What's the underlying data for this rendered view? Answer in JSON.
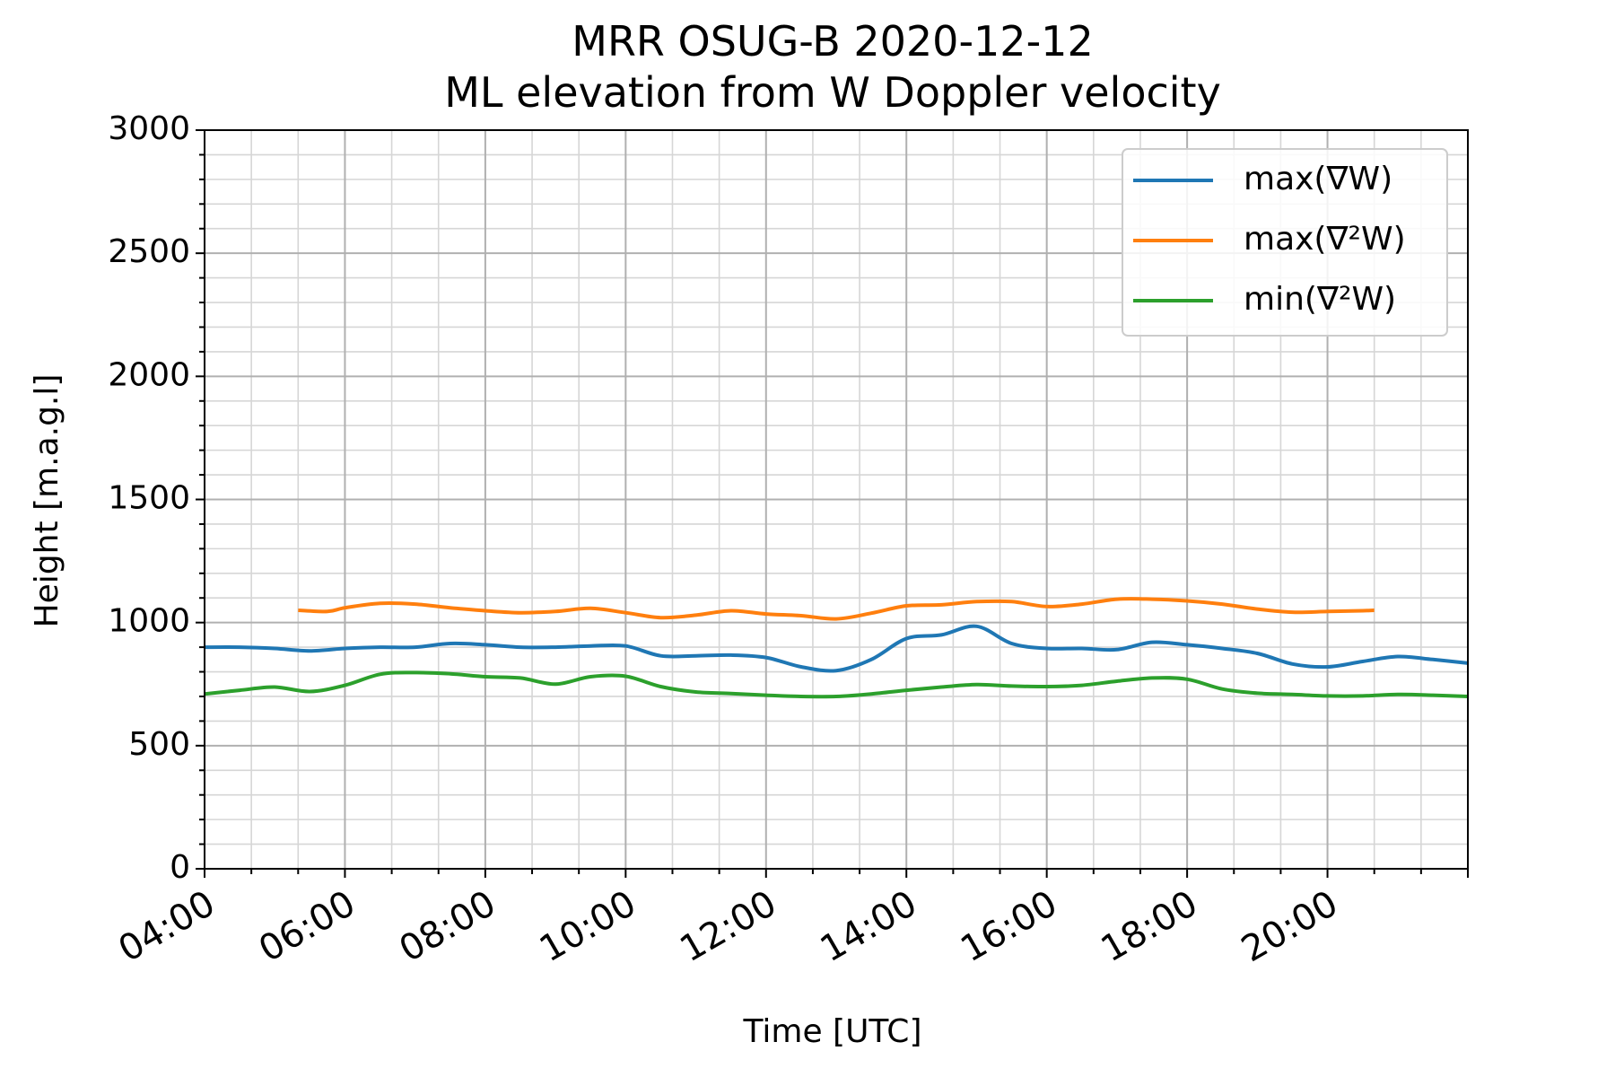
{
  "chart_data": {
    "type": "line",
    "title": "MRR OSUG-B 2020-12-12",
    "subtitle": "ML elevation from W Doppler velocity",
    "xlabel": "Time [UTC]",
    "ylabel": "Height [m.a.g.l]",
    "xlim": [
      "04:00",
      "22:00"
    ],
    "ylim": [
      0,
      3000
    ],
    "x_tick_labels": [
      "04:00",
      "06:00",
      "08:00",
      "10:00",
      "12:00",
      "14:00",
      "16:00",
      "18:00",
      "20:00"
    ],
    "y_tick_labels": [
      "0",
      "500",
      "1000",
      "1500",
      "2000",
      "2500",
      "3000"
    ],
    "grid": true,
    "legend_position": "top-right",
    "series": [
      {
        "name": "max(∇W)",
        "color": "#1f77b4",
        "x": [
          "04:00",
          "04:30",
          "05:00",
          "05:30",
          "06:00",
          "06:30",
          "07:00",
          "07:30",
          "08:00",
          "08:30",
          "09:00",
          "09:30",
          "10:00",
          "10:30",
          "11:00",
          "11:30",
          "12:00",
          "12:30",
          "13:00",
          "13:30",
          "14:00",
          "14:30",
          "15:00",
          "15:30",
          "16:00",
          "16:30",
          "17:00",
          "17:30",
          "18:00",
          "18:30",
          "19:00",
          "19:30",
          "20:00",
          "20:30",
          "21:00",
          "21:30",
          "22:00"
        ],
        "values": [
          900,
          900,
          895,
          885,
          895,
          900,
          900,
          915,
          910,
          900,
          900,
          905,
          905,
          865,
          865,
          868,
          858,
          820,
          805,
          850,
          935,
          950,
          985,
          915,
          895,
          895,
          890,
          920,
          910,
          895,
          875,
          832,
          820,
          842,
          862,
          850,
          835
        ]
      },
      {
        "name": "max(∇²W)",
        "color": "#ff7f0e",
        "x": [
          "05:20",
          "05:45",
          "06:00",
          "06:30",
          "07:00",
          "07:30",
          "08:00",
          "08:30",
          "09:00",
          "09:30",
          "10:00",
          "10:30",
          "11:00",
          "11:30",
          "12:00",
          "12:30",
          "13:00",
          "13:30",
          "14:00",
          "14:30",
          "15:00",
          "15:30",
          "16:00",
          "16:30",
          "17:00",
          "17:30",
          "18:00",
          "18:30",
          "19:00",
          "19:30",
          "20:00",
          "20:30",
          "20:40"
        ],
        "values": [
          1050,
          1045,
          1060,
          1078,
          1075,
          1060,
          1048,
          1040,
          1045,
          1058,
          1040,
          1020,
          1030,
          1048,
          1035,
          1028,
          1015,
          1038,
          1068,
          1072,
          1085,
          1085,
          1065,
          1075,
          1095,
          1095,
          1088,
          1075,
          1055,
          1042,
          1045,
          1048,
          1050
        ]
      },
      {
        "name": "min(∇²W)",
        "color": "#2ca02c",
        "x": [
          "04:00",
          "04:30",
          "05:00",
          "05:30",
          "06:00",
          "06:30",
          "07:00",
          "07:30",
          "08:00",
          "08:30",
          "09:00",
          "09:30",
          "10:00",
          "10:30",
          "11:00",
          "11:30",
          "12:00",
          "12:30",
          "13:00",
          "13:30",
          "14:00",
          "14:30",
          "15:00",
          "15:30",
          "16:00",
          "16:30",
          "17:00",
          "17:30",
          "18:00",
          "18:30",
          "19:00",
          "19:30",
          "20:00",
          "20:30",
          "21:00",
          "21:30",
          "22:00"
        ],
        "values": [
          710,
          725,
          738,
          720,
          745,
          790,
          797,
          792,
          780,
          775,
          750,
          780,
          782,
          740,
          718,
          712,
          705,
          700,
          700,
          710,
          725,
          738,
          748,
          742,
          740,
          745,
          762,
          775,
          770,
          730,
          713,
          708,
          702,
          702,
          708,
          705,
          700
        ]
      }
    ]
  }
}
